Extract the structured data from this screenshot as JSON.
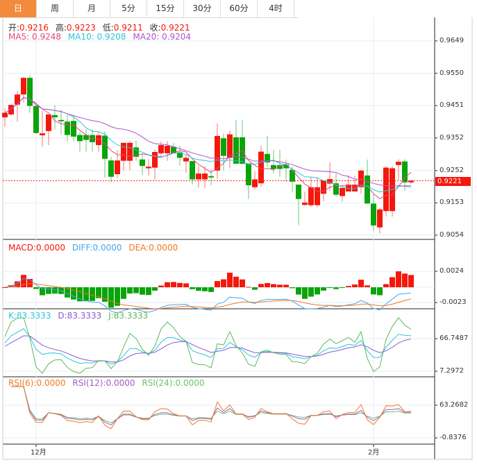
{
  "tabs": [
    "日",
    "周",
    "月",
    "5分",
    "15分",
    "30分",
    "60分",
    "4时"
  ],
  "active_tab": 0,
  "ohlc_header": {
    "open_label": "开:",
    "open": "0.9216",
    "high_label": "高:",
    "high": "0.9223",
    "low_label": "低:",
    "low": "0.9211",
    "close_label": "收:",
    "close": "0.9221"
  },
  "ma_header": {
    "ma5": "MA5: 0.9248",
    "ma10": "MA10: 0.9208",
    "ma20": "MA20: 0.9204"
  },
  "macd_header": {
    "macd": "MACD:0.0000",
    "diff": "DIFF:0.0000",
    "dea": "DEA:0.0000"
  },
  "kdj_header": {
    "k": "K:83.3333",
    "d": "D:83.3333",
    "j": "J:83.3333"
  },
  "rsi_header": {
    "rsi6": "RSI(6):0.0000",
    "rsi12": "RSI(12):0.0000",
    "rsi24": "RSI(24):0.0000"
  },
  "current_price": "0.9221",
  "colors": {
    "up": "#f5170b",
    "down": "#0aa40a",
    "ma5": "#e8457a",
    "ma10": "#29c5d8",
    "ma20": "#b152c8",
    "diff": "#4aa3f0",
    "dea": "#f07820",
    "k": "#2bc6db",
    "d": "#8a5ad0",
    "j": "#5cb85c",
    "rsi6": "#f07820",
    "rsi12": "#a05ac8",
    "rsi24": "#6cbf6c",
    "tab_active": "#f28c3c"
  },
  "chart_data": {
    "type": "candlestick",
    "price_axis_ticks": [
      "0.9649",
      "0.9550",
      "0.9451",
      "0.9352",
      "0.9252",
      "0.9153",
      "0.9054"
    ],
    "price_range": [
      0.9054,
      0.9649
    ],
    "macd_axis_ticks": [
      "0.0024",
      "-0.0023"
    ],
    "macd_range": [
      -0.0023,
      0.0024
    ],
    "kdj_axis_ticks": [
      "66.7487",
      "7.2972"
    ],
    "kdj_range": [
      7.2972,
      66.7487
    ],
    "rsi_axis_ticks": [
      "63.2682",
      "-0.8376"
    ],
    "rsi_range": [
      -0.8376,
      63.2682
    ],
    "x_labels": [
      {
        "index": 5,
        "label": "12月"
      },
      {
        "index": 59,
        "label": "2月"
      }
    ],
    "candles": [
      [
        0.9415,
        0.9443,
        0.9385,
        0.9429
      ],
      [
        0.9424,
        0.9454,
        0.942,
        0.9453
      ],
      [
        0.9454,
        0.9495,
        0.9402,
        0.9485
      ],
      [
        0.9485,
        0.9539,
        0.9459,
        0.9536
      ],
      [
        0.9536,
        0.9544,
        0.9429,
        0.945
      ],
      [
        0.945,
        0.945,
        0.9364,
        0.9367
      ],
      [
        0.936,
        0.9436,
        0.9325,
        0.9366
      ],
      [
        0.9373,
        0.9424,
        0.933,
        0.9424
      ],
      [
        0.9422,
        0.9452,
        0.9378,
        0.9415
      ],
      [
        0.9407,
        0.9438,
        0.9362,
        0.9403
      ],
      [
        0.9402,
        0.9424,
        0.9342,
        0.9361
      ],
      [
        0.9404,
        0.9422,
        0.9342,
        0.9356
      ],
      [
        0.9361,
        0.9371,
        0.931,
        0.9342
      ],
      [
        0.9361,
        0.9378,
        0.931,
        0.9346
      ],
      [
        0.9361,
        0.9378,
        0.931,
        0.9339
      ],
      [
        0.933,
        0.9371,
        0.931,
        0.936
      ],
      [
        0.9359,
        0.9373,
        0.9231,
        0.9288
      ],
      [
        0.9283,
        0.9294,
        0.9215,
        0.9233
      ],
      [
        0.9241,
        0.9315,
        0.923,
        0.9283
      ],
      [
        0.9282,
        0.9337,
        0.9252,
        0.9337
      ],
      [
        0.9282,
        0.9342,
        0.9252,
        0.9337
      ],
      [
        0.9323,
        0.9344,
        0.9282,
        0.9294
      ],
      [
        0.9286,
        0.9303,
        0.9239,
        0.9266
      ],
      [
        0.9259,
        0.9287,
        0.9237,
        0.9264
      ],
      [
        0.9261,
        0.9317,
        0.9224,
        0.9309
      ],
      [
        0.9305,
        0.9342,
        0.9293,
        0.933
      ],
      [
        0.9305,
        0.9342,
        0.9282,
        0.9328
      ],
      [
        0.9325,
        0.9337,
        0.9305,
        0.9305
      ],
      [
        0.9308,
        0.9328,
        0.9267,
        0.9291
      ],
      [
        0.928,
        0.93,
        0.9245,
        0.9291
      ],
      [
        0.9281,
        0.9281,
        0.9209,
        0.9225
      ],
      [
        0.9225,
        0.9266,
        0.9199,
        0.9243
      ],
      [
        0.9225,
        0.9266,
        0.9199,
        0.9243
      ],
      [
        0.9235,
        0.9255,
        0.9207,
        0.9231
      ],
      [
        0.9252,
        0.9397,
        0.9227,
        0.9358
      ],
      [
        0.9351,
        0.9365,
        0.9252,
        0.9297
      ],
      [
        0.9291,
        0.9375,
        0.9259,
        0.9363
      ],
      [
        0.9354,
        0.9407,
        0.9273,
        0.9273
      ],
      [
        0.9354,
        0.9407,
        0.9269,
        0.9273
      ],
      [
        0.9274,
        0.9274,
        0.9165,
        0.9207
      ],
      [
        0.9201,
        0.925,
        0.9194,
        0.9225
      ],
      [
        0.9213,
        0.9328,
        0.9203,
        0.931
      ],
      [
        0.9303,
        0.9359,
        0.9264,
        0.9277
      ],
      [
        0.9269,
        0.9315,
        0.9243,
        0.9257
      ],
      [
        0.9269,
        0.9315,
        0.9233,
        0.9257
      ],
      [
        0.9271,
        0.9286,
        0.9218,
        0.9259
      ],
      [
        0.9254,
        0.9264,
        0.9186,
        0.9218
      ],
      [
        0.9209,
        0.9209,
        0.9085,
        0.9165
      ],
      [
        0.9147,
        0.9188,
        0.9145,
        0.9154
      ],
      [
        0.9146,
        0.9232,
        0.914,
        0.9201
      ],
      [
        0.9146,
        0.9232,
        0.914,
        0.9201
      ],
      [
        0.9181,
        0.9222,
        0.9158,
        0.9222
      ],
      [
        0.9212,
        0.9277,
        0.919,
        0.9226
      ],
      [
        0.9213,
        0.9243,
        0.9172,
        0.9178
      ],
      [
        0.9174,
        0.9199,
        0.9157,
        0.9199
      ],
      [
        0.9188,
        0.9237,
        0.9188,
        0.9209
      ],
      [
        0.9188,
        0.9237,
        0.9188,
        0.9209
      ],
      [
        0.9201,
        0.9254,
        0.9181,
        0.9252
      ],
      [
        0.9237,
        0.9286,
        0.9151,
        0.9151
      ],
      [
        0.9151,
        0.9179,
        0.9067,
        0.9084
      ],
      [
        0.9078,
        0.9137,
        0.9059,
        0.9133
      ],
      [
        0.9128,
        0.9266,
        0.9111,
        0.9261
      ],
      [
        0.9128,
        0.9266,
        0.9111,
        0.9259
      ],
      [
        0.9269,
        0.9287,
        0.9223,
        0.9279
      ],
      [
        0.928,
        0.9287,
        0.919,
        0.9216
      ],
      [
        0.9216,
        0.9223,
        0.9211,
        0.9221
      ]
    ]
  }
}
